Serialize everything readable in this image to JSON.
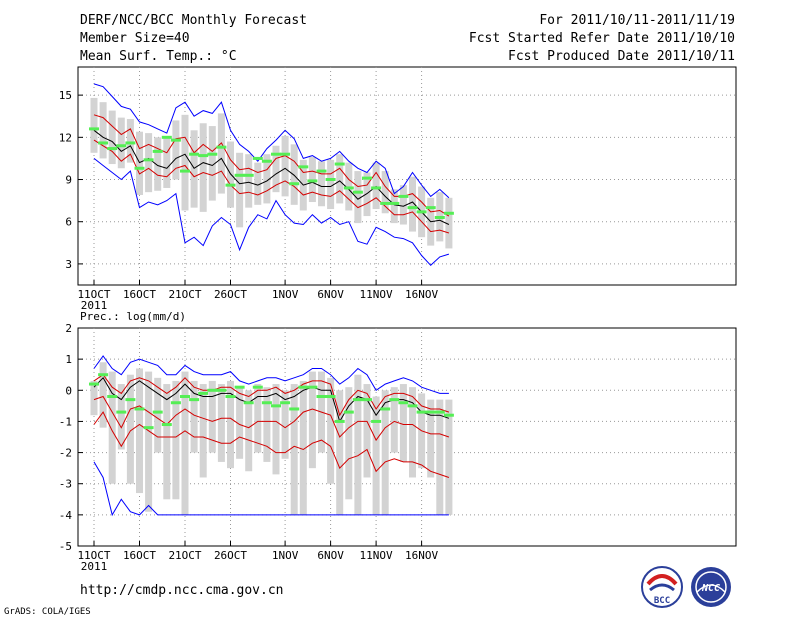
{
  "header": {
    "title": "DERF/NCC/BCC Monthly Forecast",
    "member_size": "Member Size=40",
    "variable": "Mean Surf. Temp.: °C",
    "forecast_period": "For 2011/10/11-2011/11/19",
    "started_refer": "Fcst Started Refer Date 2011/10/10",
    "produced": "Fcst Produced Date 2011/10/11"
  },
  "footer": {
    "url": "http://cmdp.ncc.cma.gov.cn",
    "credit": "GrADS: COLA/IGES",
    "logo_left": "BCC",
    "logo_right": "NCC"
  },
  "x_axis": {
    "days": 40,
    "year_label": "2011",
    "ticks": [
      {
        "day": 0,
        "label": "11OCT"
      },
      {
        "day": 5,
        "label": "16OCT"
      },
      {
        "day": 10,
        "label": "21OCT"
      },
      {
        "day": 15,
        "label": "26OCT"
      },
      {
        "day": 21,
        "label": "1NOV"
      },
      {
        "day": 26,
        "label": "6NOV"
      },
      {
        "day": 31,
        "label": "11NOV"
      },
      {
        "day": 36,
        "label": "16NOV"
      }
    ]
  },
  "colors": {
    "max_min": "#0000ff",
    "spread": "#d40000",
    "mean": "#000000",
    "box": "#d3d3d3",
    "observed": "#55ee55",
    "grid": "#999999"
  },
  "chart_data": [
    {
      "type": "line",
      "title": "Mean Surf. Temp.: °C",
      "ylim": [
        1.5,
        17
      ],
      "yticks": [
        3,
        6,
        9,
        12,
        15
      ],
      "series": [
        {
          "name": "max",
          "values": [
            15.8,
            15.6,
            14.9,
            14.2,
            14.0,
            13.1,
            12.9,
            12.6,
            12.3,
            14.1,
            14.5,
            13.5,
            13.9,
            13.7,
            14.5,
            12.5,
            11.5,
            11.0,
            10.3,
            11.2,
            11.8,
            12.5,
            11.9,
            10.5,
            10.7,
            10.3,
            10.5,
            11.0,
            10.3,
            9.8,
            9.5,
            10.3,
            9.8,
            8.0,
            8.5,
            9.5,
            8.6,
            7.8,
            8.3,
            7.7
          ]
        },
        {
          "name": "upper",
          "values": [
            13.6,
            13.4,
            12.8,
            12.2,
            12.6,
            11.2,
            11.5,
            11.2,
            10.9,
            11.9,
            12.0,
            10.9,
            11.5,
            11.0,
            11.6,
            10.4,
            9.7,
            9.8,
            9.5,
            9.7,
            10.5,
            10.7,
            10.3,
            9.5,
            9.6,
            9.4,
            9.4,
            9.8,
            9.0,
            8.5,
            8.6,
            9.5,
            8.5,
            7.8,
            7.8,
            8.0,
            7.4,
            6.7,
            6.8,
            6.4
          ]
        },
        {
          "name": "mean",
          "values": [
            12.5,
            12.0,
            11.7,
            11.0,
            11.4,
            10.2,
            10.5,
            10.0,
            9.8,
            10.5,
            10.8,
            9.8,
            10.2,
            10.0,
            10.5,
            9.4,
            8.7,
            8.8,
            8.6,
            8.9,
            9.4,
            9.8,
            9.3,
            8.6,
            8.8,
            8.5,
            8.5,
            8.9,
            8.3,
            7.6,
            8.0,
            8.5,
            7.8,
            7.2,
            7.1,
            7.4,
            6.7,
            6.0,
            6.1,
            5.8
          ]
        },
        {
          "name": "lower",
          "values": [
            11.8,
            11.4,
            11.0,
            10.3,
            10.8,
            9.4,
            9.8,
            9.3,
            9.2,
            9.8,
            10.0,
            9.2,
            9.5,
            9.3,
            9.6,
            8.6,
            8.0,
            8.1,
            7.9,
            8.2,
            8.6,
            8.9,
            8.5,
            7.9,
            8.1,
            7.9,
            7.8,
            8.2,
            7.6,
            7.0,
            7.3,
            7.7,
            7.1,
            6.5,
            6.5,
            6.7,
            6.0,
            5.3,
            5.4,
            5.2
          ]
        },
        {
          "name": "min",
          "values": [
            10.5,
            10.0,
            9.5,
            9.0,
            9.6,
            7.0,
            7.4,
            7.2,
            7.5,
            8.0,
            4.5,
            4.9,
            4.3,
            5.7,
            6.3,
            5.8,
            4.0,
            5.6,
            6.5,
            6.2,
            7.5,
            6.5,
            5.9,
            5.8,
            6.5,
            5.9,
            6.3,
            5.8,
            6.0,
            4.6,
            4.4,
            5.6,
            5.3,
            4.9,
            4.8,
            4.5,
            3.6,
            2.9,
            3.5,
            3.7
          ]
        }
      ],
      "box_low": [
        10.9,
        10.5,
        10.1,
        9.8,
        10.2,
        7.9,
        8.1,
        8.2,
        8.4,
        9.0,
        6.8,
        7.0,
        6.7,
        7.5,
        8.0,
        7.0,
        5.6,
        7.0,
        7.2,
        7.3,
        8.1,
        7.8,
        7.2,
        6.8,
        7.4,
        7.1,
        6.9,
        7.3,
        6.8,
        5.9,
        6.4,
        6.9,
        6.6,
        5.9,
        5.8,
        5.3,
        4.9,
        4.3,
        4.6,
        4.1
      ],
      "box_high": [
        14.8,
        14.5,
        13.9,
        13.4,
        13.3,
        12.4,
        12.3,
        12.0,
        12.0,
        13.2,
        13.6,
        12.5,
        13.0,
        12.8,
        13.7,
        11.7,
        10.9,
        10.8,
        10.2,
        10.8,
        11.4,
        12.1,
        11.5,
        10.4,
        10.6,
        10.3,
        10.4,
        10.8,
        10.2,
        9.6,
        9.5,
        10.2,
        9.6,
        8.3,
        8.6,
        9.2,
        8.5,
        7.7,
        8.1,
        7.7
      ],
      "observed": [
        12.6,
        11.6,
        11.2,
        11.4,
        11.6,
        9.8,
        10.4,
        11.0,
        12.0,
        11.8,
        9.6,
        10.8,
        10.7,
        10.8,
        11.3,
        8.6,
        9.3,
        9.3,
        10.5,
        10.3,
        10.8,
        10.8,
        8.7,
        9.9,
        8.9,
        9.6,
        9.0,
        10.1,
        8.4,
        8.1,
        9.1,
        8.4,
        7.3,
        7.3,
        7.8,
        7.0,
        6.7,
        7.0,
        6.3,
        6.6
      ]
    },
    {
      "type": "line",
      "title": "Prec.: log(mm/d)",
      "ylim": [
        -5,
        2
      ],
      "yticks": [
        -5,
        -4,
        -3,
        -2,
        -1,
        0,
        1,
        2
      ],
      "series": [
        {
          "name": "max",
          "values": [
            0.7,
            1.1,
            0.7,
            0.5,
            0.9,
            1.0,
            0.9,
            0.8,
            0.5,
            0.5,
            0.8,
            0.6,
            0.5,
            0.5,
            0.5,
            0.6,
            0.3,
            0.2,
            0.3,
            0.4,
            0.4,
            0.3,
            0.4,
            0.5,
            0.7,
            0.7,
            0.5,
            0.2,
            0.4,
            0.7,
            0.5,
            0.0,
            0.2,
            0.3,
            0.4,
            0.3,
            0.1,
            0.0,
            -0.1,
            -0.1
          ]
        },
        {
          "name": "upper",
          "values": [
            0.3,
            0.5,
            0.1,
            -0.1,
            0.3,
            0.4,
            0.3,
            0.1,
            -0.1,
            0.1,
            0.4,
            0.1,
            0.0,
            0.0,
            0.1,
            0.1,
            -0.1,
            -0.2,
            0.0,
            0.0,
            0.1,
            -0.1,
            0.0,
            0.2,
            0.3,
            0.3,
            0.2,
            -0.8,
            -0.3,
            0.0,
            -0.1,
            -0.6,
            -0.2,
            -0.1,
            -0.1,
            -0.2,
            -0.5,
            -0.6,
            -0.6,
            -0.7
          ]
        },
        {
          "name": "mean",
          "values": [
            0.1,
            0.4,
            -0.1,
            -0.3,
            0.1,
            0.3,
            0.1,
            -0.1,
            -0.3,
            -0.1,
            0.2,
            -0.1,
            -0.2,
            -0.2,
            -0.1,
            -0.1,
            -0.3,
            -0.4,
            -0.2,
            -0.2,
            -0.1,
            -0.3,
            -0.2,
            0.0,
            0.1,
            0.0,
            0.0,
            -1.0,
            -0.5,
            -0.2,
            -0.3,
            -0.8,
            -0.4,
            -0.3,
            -0.3,
            -0.4,
            -0.7,
            -0.8,
            -0.8,
            -0.9
          ]
        },
        {
          "name": "lower",
          "values": [
            -0.3,
            -0.2,
            -0.7,
            -1.2,
            -0.6,
            -0.5,
            -0.7,
            -0.9,
            -1.1,
            -0.8,
            -0.6,
            -0.8,
            -0.9,
            -1.0,
            -0.9,
            -0.9,
            -1.1,
            -1.2,
            -1.0,
            -1.0,
            -1.0,
            -1.2,
            -1.0,
            -0.7,
            -0.6,
            -0.7,
            -0.8,
            -1.5,
            -1.2,
            -1.0,
            -1.0,
            -1.6,
            -1.2,
            -1.0,
            -1.1,
            -1.1,
            -1.3,
            -1.4,
            -1.4,
            -1.5
          ]
        },
        {
          "name": "spread_low",
          "values": [
            -1.1,
            -0.7,
            -1.3,
            -1.8,
            -1.3,
            -1.1,
            -1.3,
            -1.5,
            -1.5,
            -1.5,
            -1.3,
            -1.5,
            -1.5,
            -1.6,
            -1.7,
            -1.7,
            -1.5,
            -1.6,
            -1.7,
            -1.8,
            -2.0,
            -2.0,
            -1.8,
            -1.9,
            -1.7,
            -1.6,
            -1.8,
            -2.5,
            -2.2,
            -2.1,
            -1.9,
            -2.6,
            -2.3,
            -2.2,
            -2.3,
            -2.3,
            -2.4,
            -2.6,
            -2.7,
            -2.8
          ]
        },
        {
          "name": "min",
          "values": [
            -2.3,
            -2.8,
            -4.0,
            -3.5,
            -3.9,
            -4.0,
            -3.7,
            -4.0,
            -4.0,
            -4.0,
            -4.0,
            -4.0,
            -4.0,
            -4.0,
            -4.0,
            -4.0,
            -4.0,
            -4.0,
            -4.0,
            -4.0,
            -4.0,
            -4.0,
            -4.0,
            -4.0,
            -4.0,
            -4.0,
            -4.0,
            -4.0,
            -4.0,
            -4.0,
            -4.0,
            -4.0,
            -4.0,
            -4.0,
            -4.0,
            -4.0,
            -4.0,
            -4.0,
            -4.0,
            -4.0
          ]
        }
      ],
      "box_low": [
        -0.8,
        -1.2,
        -3.0,
        -1.9,
        -3.0,
        -3.3,
        -3.9,
        -2.0,
        -3.5,
        -3.5,
        -4.0,
        -2.0,
        -2.8,
        -2.0,
        -2.3,
        -2.5,
        -2.2,
        -2.6,
        -2.0,
        -2.3,
        -2.7,
        -2.2,
        -4.0,
        -4.0,
        -2.5,
        -2.0,
        -3.0,
        -4.0,
        -3.5,
        -4.0,
        -2.8,
        -4.0,
        -4.0,
        -2.0,
        -2.3,
        -2.8,
        -2.5,
        -2.8,
        -4.0,
        -4.0
      ],
      "box_high": [
        0.3,
        0.9,
        0.6,
        0.2,
        0.5,
        0.7,
        0.6,
        0.4,
        0.2,
        0.3,
        0.6,
        0.3,
        0.2,
        0.3,
        0.2,
        0.3,
        0.1,
        0.0,
        0.2,
        0.1,
        0.2,
        0.0,
        0.2,
        0.3,
        0.6,
        0.6,
        0.4,
        0.0,
        0.1,
        0.5,
        0.2,
        -0.2,
        0.0,
        0.1,
        0.2,
        0.1,
        -0.1,
        -0.3,
        -0.3,
        -0.3
      ],
      "observed": [
        0.2,
        0.5,
        -0.2,
        -0.7,
        -0.3,
        -0.6,
        -1.2,
        -0.7,
        -1.1,
        -0.4,
        -0.2,
        -0.3,
        -0.1,
        0.0,
        0.0,
        -0.2,
        0.1,
        -0.4,
        0.1,
        -0.4,
        -0.5,
        -0.4,
        -0.6,
        0.1,
        0.1,
        -0.2,
        -0.2,
        -1.0,
        -0.7,
        -0.3,
        -0.3,
        -1.0,
        -0.6,
        -0.3,
        -0.4,
        -0.5,
        -0.7,
        -0.7,
        -0.7,
        -0.8
      ]
    }
  ]
}
